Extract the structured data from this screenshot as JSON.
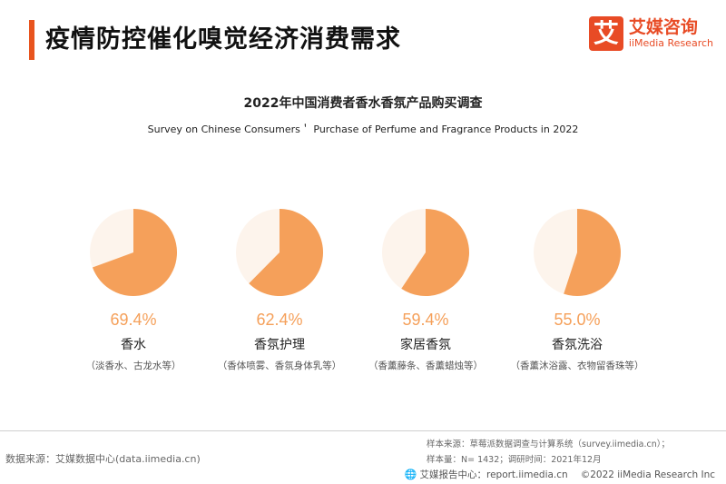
{
  "header": {
    "title": "疫情防控催化嗅觉经济消费需求",
    "logo_glyph": "艾",
    "logo_cn": "艾媒咨询",
    "logo_en": "iiMedia Research"
  },
  "colors": {
    "accent": "#e8541e",
    "pie_fill": "#f5a05a",
    "pie_bg": "#fdf4ec"
  },
  "chart_data": {
    "type": "pie",
    "title": "2022年中国消费者香水香氛产品购买调查",
    "subtitle": "Survey on Chinese Consumers＇ Purchase of Perfume and Fragrance Products in 2022",
    "items": [
      {
        "value": 69.4,
        "pct_label": "69.4%",
        "label": "香水",
        "note": "（淡香水、古龙水等）"
      },
      {
        "value": 62.4,
        "pct_label": "62.4%",
        "label": "香氛护理",
        "note": "（香体喷雾、香氛身体乳等）"
      },
      {
        "value": 59.4,
        "pct_label": "59.4%",
        "label": "家居香氛",
        "note": "（香薰藤条、香薰蜡烛等）"
      },
      {
        "value": 55.0,
        "pct_label": "55.0%",
        "label": "香氛洗浴",
        "note": "（香薰沐浴露、衣物留香珠等）"
      }
    ]
  },
  "footer": {
    "data_source": "数据来源：艾媒数据中心(data.iimedia.cn)",
    "sample_source": "样本来源：草莓派数据调查与计算系统（survey.iimedia.cn）；",
    "sample_size": "样本量：N= 1432；调研时间：2021年12月",
    "globe_icon": "🌐",
    "report_site": "艾媒报告中心：report.iimedia.cn",
    "copyright": "©2022  iiMedia Research  Inc"
  }
}
